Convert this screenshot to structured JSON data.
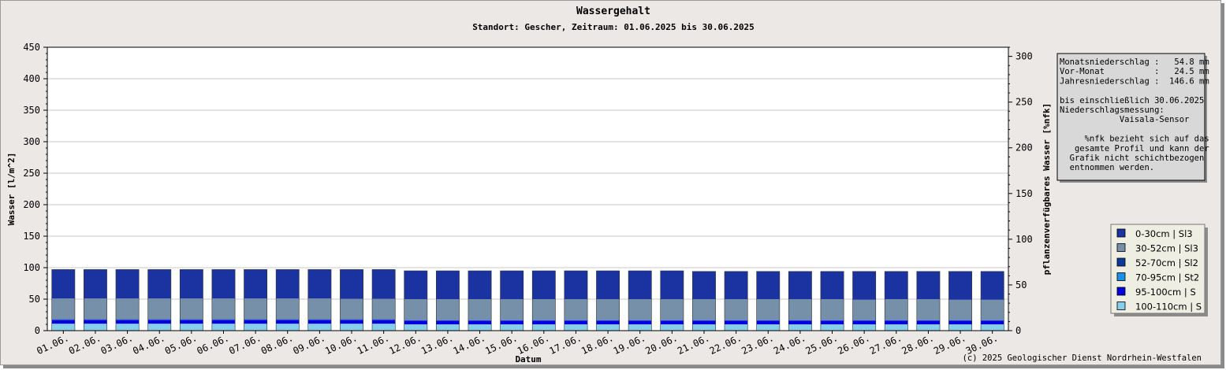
{
  "title": "Wassergehalt",
  "subtitle": "Standort: Gescher, Zeitraum: 01.06.2025 bis 30.06.2025",
  "copyright": "(c) 2025 Geologischer Dienst Nordrhein-Westfalen",
  "info_box": {
    "lines": [
      "Monatsniederschlag :   54.8 mm",
      "Vor-Monat          :   24.5 mm",
      "Jahresniederschlag :  146.6 mm",
      "",
      "bis einschließlich 30.06.2025",
      "Niederschlagsmessung:",
      "            Vaisala-Sensor",
      "",
      "     %nfk bezieht sich auf das",
      "   gesamte Profil und kann der",
      "  Grafik nicht schichtbezogen",
      "  entnommen werden."
    ]
  },
  "colors": {
    "background": "#ece8e6",
    "plot_bg": "#ffffff",
    "grid": "#c8c8c8"
  },
  "chart_data": {
    "type": "bar",
    "stacked": true,
    "title": "Wassergehalt",
    "subtitle": "Standort: Gescher, Zeitraum: 01.06.2025 bis 30.06.2025",
    "xlabel": "Datum",
    "ylabel": "Wasser [l/m^2]",
    "y2label": "pflanzenverfügbares Wasser [%nfk]",
    "ylim": [
      0,
      450
    ],
    "yticks": [
      0,
      50,
      100,
      150,
      200,
      250,
      300,
      350,
      400,
      450
    ],
    "y2lim": [
      0,
      310
    ],
    "y2ticks": [
      0,
      50,
      100,
      150,
      200,
      250,
      300
    ],
    "grid": true,
    "legend_position": "right",
    "categories": [
      "01.06.",
      "02.06.",
      "03.06.",
      "04.06.",
      "05.06.",
      "06.06.",
      "07.06.",
      "08.06.",
      "09.06.",
      "10.06.",
      "11.06.",
      "12.06.",
      "13.06.",
      "14.06.",
      "15.06.",
      "16.06.",
      "17.06.",
      "18.06.",
      "19.06.",
      "20.06.",
      "21.06.",
      "22.06.",
      "23.06.",
      "24.06.",
      "25.06.",
      "26.06.",
      "27.06.",
      "28.06.",
      "29.06.",
      "30.06."
    ],
    "series": [
      {
        "name": "100-110cm | S",
        "color": "#87ceeb",
        "values": [
          11,
          11,
          11,
          11,
          11,
          11,
          11,
          11,
          11,
          11,
          11,
          10,
          10,
          10,
          10,
          10,
          10,
          10,
          10,
          10,
          10,
          10,
          10,
          10,
          10,
          10,
          10,
          10,
          10,
          10
        ]
      },
      {
        "name": "95-100cm | S",
        "color": "#0000e0",
        "values": [
          6,
          6,
          6,
          6,
          6,
          6,
          6,
          6,
          6,
          6,
          6,
          6,
          6,
          6,
          6,
          6,
          6,
          6,
          6,
          6,
          6,
          6,
          6,
          6,
          6,
          6,
          6,
          6,
          6,
          6
        ]
      },
      {
        "name": "70-95cm | St2",
        "color": "#1a8fe6",
        "values": [
          0.5,
          0.5,
          0.5,
          0.5,
          0.5,
          0.5,
          0.5,
          0.5,
          0.5,
          0.5,
          0.5,
          0.5,
          0.5,
          0.5,
          0.5,
          0.5,
          0.5,
          0.5,
          0.5,
          0.5,
          0.5,
          0.5,
          0.5,
          0.5,
          0.5,
          0.5,
          0.5,
          0.5,
          0.5,
          0.5
        ]
      },
      {
        "name": "52-70cm | Sl2",
        "color": "#0e3a9a",
        "values": [
          0.5,
          0.5,
          0.5,
          0.5,
          0.5,
          0.5,
          0.5,
          0.5,
          0.5,
          0.5,
          0.5,
          0.5,
          0.5,
          0.5,
          0.5,
          0.5,
          0.5,
          0.5,
          0.5,
          0.5,
          0.5,
          0.5,
          0.5,
          0.5,
          0.5,
          0.5,
          0.5,
          0.5,
          0.5,
          0.5
        ]
      },
      {
        "name": "30-52cm | Sl3",
        "color": "#7590a8",
        "values": [
          33,
          33,
          33,
          33,
          33,
          33,
          33,
          33,
          33,
          32.5,
          32.5,
          33,
          33,
          33,
          33,
          33,
          33,
          33,
          33,
          33,
          33,
          33,
          33,
          33,
          33,
          32,
          33,
          33,
          32,
          32
        ]
      },
      {
        "name": "0-30cm | Sl3",
        "color": "#1a33a0",
        "values": [
          46,
          46,
          46,
          46,
          46,
          46,
          46,
          46,
          46,
          46.5,
          46.5,
          45,
          45,
          45,
          45,
          45,
          45,
          45,
          45,
          45,
          44,
          44,
          44,
          44,
          44,
          45,
          44,
          44,
          45,
          45
        ]
      }
    ],
    "legend": [
      "0-30cm | Sl3",
      "30-52cm | Sl3",
      "52-70cm | Sl2",
      "70-95cm | St2",
      "95-100cm | S",
      "100-110cm | S"
    ]
  }
}
